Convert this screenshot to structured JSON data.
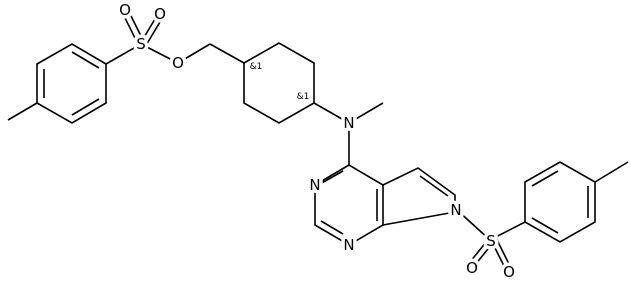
{
  "labels": {
    "ts1_o_a": "O",
    "ts1_o_b": "O",
    "ts1_s": "S",
    "ester_o": "O",
    "stereo_1": "&1",
    "stereo_2": "&1",
    "amine_n": "N",
    "n3": "N",
    "n1": "N",
    "n7": "N",
    "ts2_s": "S",
    "ts2_o_a": "O",
    "ts2_o_b": "O"
  }
}
